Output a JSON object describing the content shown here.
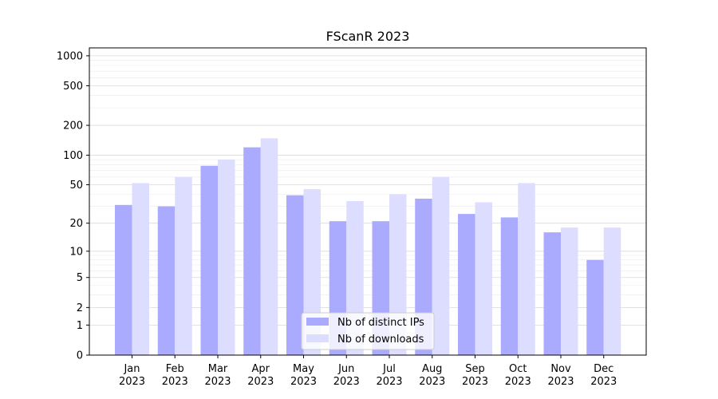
{
  "chart_data": {
    "type": "bar",
    "title": "FScanR 2023",
    "xlabel": "",
    "ylabel": "",
    "yscale": "symlog",
    "ylim": [
      0,
      1200
    ],
    "yticks": [
      0,
      1,
      2,
      5,
      10,
      20,
      50,
      100,
      200,
      500,
      1000
    ],
    "ytick_labels": [
      "0",
      "1",
      "2",
      "5",
      "10",
      "20",
      "50",
      "100",
      "200",
      "500",
      "1000"
    ],
    "grid": true,
    "legend_position": "lower-center",
    "categories": [
      [
        "Jan",
        "2023"
      ],
      [
        "Feb",
        "2023"
      ],
      [
        "Mar",
        "2023"
      ],
      [
        "Apr",
        "2023"
      ],
      [
        "May",
        "2023"
      ],
      [
        "Jun",
        "2023"
      ],
      [
        "Jul",
        "2023"
      ],
      [
        "Aug",
        "2023"
      ],
      [
        "Sep",
        "2023"
      ],
      [
        "Oct",
        "2023"
      ],
      [
        "Nov",
        "2023"
      ],
      [
        "Dec",
        "2023"
      ]
    ],
    "series": [
      {
        "name": "Nb of distinct IPs",
        "color": "#aaaaff",
        "values": [
          31,
          30,
          78,
          120,
          39,
          21,
          21,
          36,
          25,
          23,
          16,
          8
        ]
      },
      {
        "name": "Nb of downloads",
        "color": "#ddddff",
        "values": [
          52,
          60,
          90,
          148,
          45,
          34,
          40,
          60,
          33,
          52,
          18,
          18
        ]
      }
    ]
  }
}
